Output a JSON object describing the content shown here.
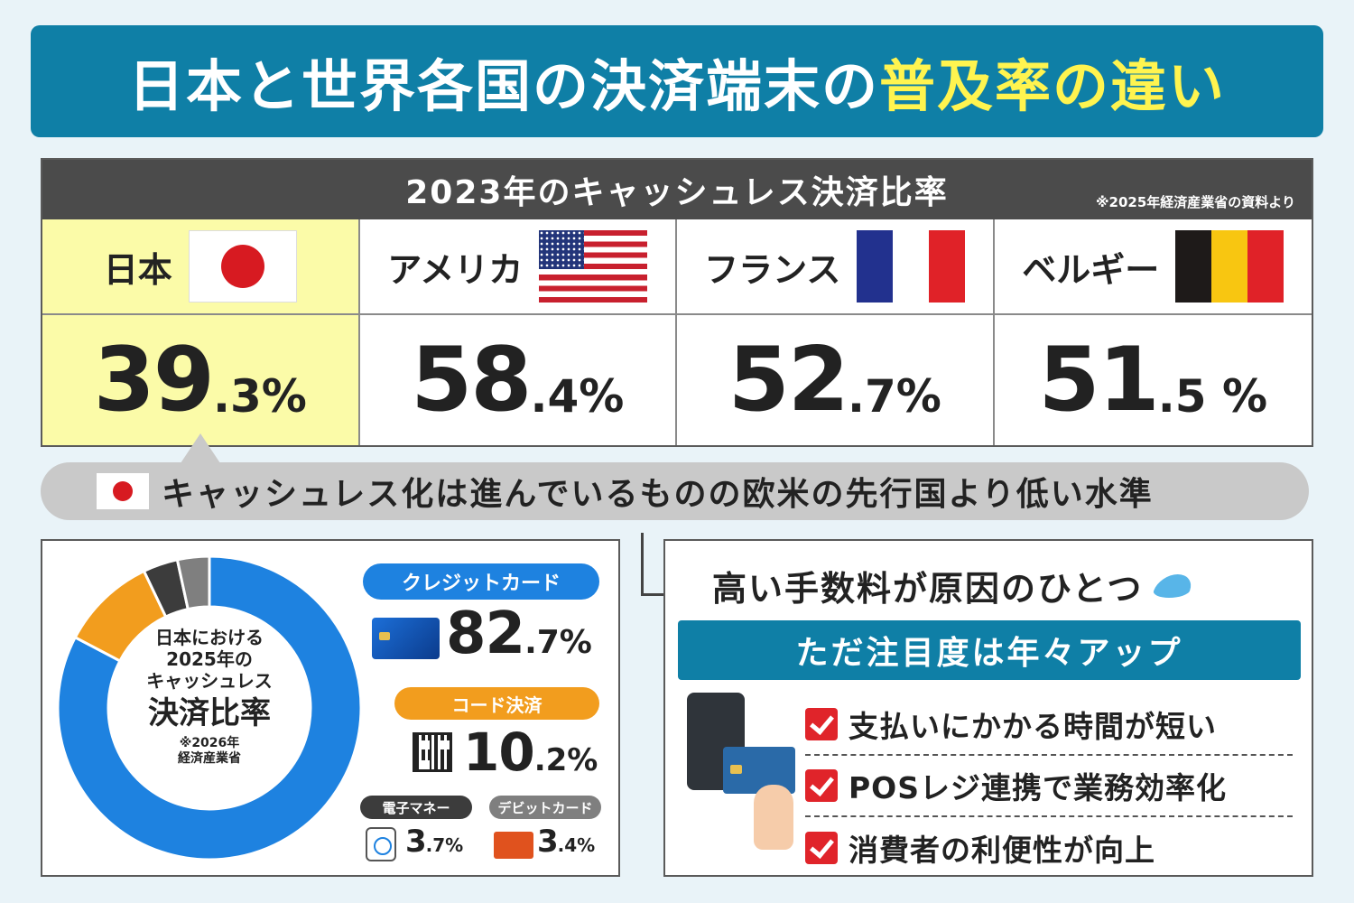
{
  "title": {
    "main": "日本と世界各国の決済端末の",
    "highlight": "普及率の違い"
  },
  "rate_panel": {
    "heading": "2023年のキャッシュレス決済比率",
    "source_note": "※2025年経済産業省の資料より",
    "countries": [
      {
        "name": "日本",
        "value_int": "39",
        "value_dec": ".3%",
        "highlight": true
      },
      {
        "name": "アメリカ",
        "value_int": "58",
        "value_dec": ".4%"
      },
      {
        "name": "フランス",
        "value_int": "52",
        "value_dec": ".7%"
      },
      {
        "name": "ベルギー",
        "value_int": "51",
        "value_dec": ".5 %"
      }
    ]
  },
  "summary": "キャッシュレス化は進んでいるものの欧米の先行国より低い水準",
  "chart_data": {
    "type": "pie",
    "title": "日本における2025年のキャッシュレス決済比率",
    "source": "※2026年経済産業省",
    "categories": [
      "クレジットカード",
      "コード決済",
      "電子マネー",
      "デビットカード"
    ],
    "values": [
      82.7,
      10.2,
      3.7,
      3.4
    ],
    "colors": [
      "#1e82e0",
      "#f29d1e",
      "#3c3c3c",
      "#7f7f7f"
    ]
  },
  "donut_label": {
    "line1": "日本における",
    "line1b": "2025年の",
    "line1c": "キャッシュレス",
    "line2": "決済比率",
    "note1": "※2026年",
    "note2": "経済産業省"
  },
  "breakdown": {
    "credit": {
      "label": "クレジットカード",
      "int": "82",
      "dec": ".7%"
    },
    "code": {
      "label": "コード決済",
      "int": "10",
      "dec": ".2%"
    },
    "emoney": {
      "label": "電子マネー",
      "int": "3",
      "dec": ".7%"
    },
    "debit": {
      "label": "デビットカード",
      "int": "3",
      "dec": ".4%"
    }
  },
  "reason": {
    "title": "高い手数料が原因のひとつ",
    "band": "ただ注目度は年々アップ",
    "items": [
      "支払いにかかる時間が短い",
      "POSレジ連携で業務効率化",
      "消費者の利便性が向上"
    ]
  }
}
